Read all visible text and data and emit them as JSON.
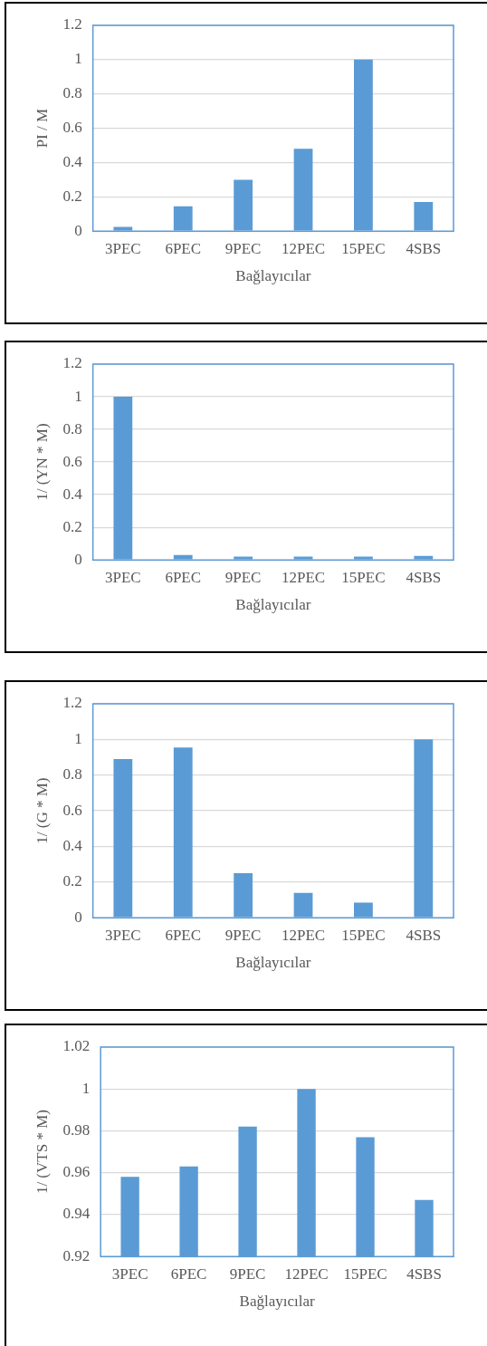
{
  "chart_data": [
    {
      "type": "bar",
      "categories": [
        "3PEC",
        "6PEC",
        "9PEC",
        "12PEC",
        "15PEC",
        "4SBS"
      ],
      "values": [
        0.025,
        0.145,
        0.3,
        0.48,
        1.0,
        0.17
      ],
      "color": "#5b9bd5",
      "xlabel": "Bağlayıcılar",
      "ylabel": "PI / M",
      "ylim": [
        0,
        1.2
      ],
      "yticks": [
        0,
        0.2,
        0.4,
        0.6,
        0.8,
        1,
        1.2
      ],
      "grid": "y",
      "legend": false
    },
    {
      "type": "bar",
      "categories": [
        "3PEC",
        "6PEC",
        "9PEC",
        "12PEC",
        "15PEC",
        "4SBS"
      ],
      "values": [
        1.0,
        0.03,
        0.02,
        0.02,
        0.02,
        0.025
      ],
      "color": "#5b9bd5",
      "xlabel": "Bağlayıcılar",
      "ylabel": "1/ (YN * M)",
      "ylim": [
        0,
        1.2
      ],
      "yticks": [
        0,
        0.2,
        0.4,
        0.6,
        0.8,
        1,
        1.2
      ],
      "grid": "y",
      "legend": false
    },
    {
      "type": "bar",
      "categories": [
        "3PEC",
        "6PEC",
        "9PEC",
        "12PEC",
        "15PEC",
        "4SBS"
      ],
      "values": [
        0.89,
        0.955,
        0.25,
        0.14,
        0.085,
        1.0
      ],
      "color": "#5b9bd5",
      "xlabel": "Bağlayıcılar",
      "ylabel": "1/ (G * M)",
      "ylim": [
        0,
        1.2
      ],
      "yticks": [
        0,
        0.2,
        0.4,
        0.6,
        0.8,
        1,
        1.2
      ],
      "grid": "y",
      "legend": false
    },
    {
      "type": "bar",
      "categories": [
        "3PEC",
        "6PEC",
        "9PEC",
        "12PEC",
        "15PEC",
        "4SBS"
      ],
      "values": [
        0.958,
        0.963,
        0.982,
        1.0,
        0.977,
        0.947
      ],
      "color": "#5b9bd5",
      "xlabel": "Bağlayıcılar",
      "ylabel": "1/ (VTS * M)",
      "ylim": [
        0.92,
        1.02
      ],
      "yticks": [
        0.92,
        0.94,
        0.96,
        0.98,
        1,
        1.02
      ],
      "grid": "y",
      "legend": false
    }
  ]
}
